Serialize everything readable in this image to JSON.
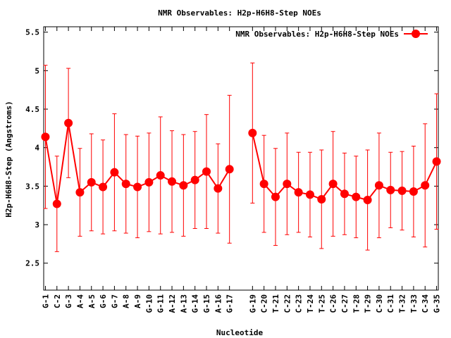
{
  "chart_data": {
    "type": "line",
    "title": "NMR Observables: H2p-H6H8-Step NOEs",
    "xlabel": "Nucleotide",
    "ylabel": "H2p-H6H8-Step (Angstroms)",
    "ylim": [
      2.15,
      5.57
    ],
    "yticks": [
      2.5,
      3,
      3.5,
      4,
      4.5,
      5,
      5.5
    ],
    "ytick_labels": [
      "2.5",
      "3",
      "3.5",
      "4",
      "4.5",
      "5",
      "5.5"
    ],
    "grid": false,
    "legend_position": "top-right",
    "series": [
      {
        "name": "NMR Observables: H2p-H6H8-Step NOEs",
        "color": "#ff0000",
        "points": [
          {
            "pos": 1,
            "label": "G-1",
            "y": 4.14,
            "err": 0.93
          },
          {
            "pos": 2,
            "label": "C-2",
            "y": 3.27,
            "err": 0.62
          },
          {
            "pos": 3,
            "label": "G-3",
            "y": 4.32,
            "err": 0.71
          },
          {
            "pos": 4,
            "label": "A-4",
            "y": 3.42,
            "err": 0.57
          },
          {
            "pos": 5,
            "label": "A-5",
            "y": 3.55,
            "err": 0.63
          },
          {
            "pos": 6,
            "label": "G-6",
            "y": 3.49,
            "err": 0.61
          },
          {
            "pos": 7,
            "label": "G-7",
            "y": 3.68,
            "err": 0.76
          },
          {
            "pos": 8,
            "label": "A-8",
            "y": 3.53,
            "err": 0.64
          },
          {
            "pos": 9,
            "label": "A-9",
            "y": 3.49,
            "err": 0.66
          },
          {
            "pos": 10,
            "label": "G-10",
            "y": 3.55,
            "err": 0.64
          },
          {
            "pos": 11,
            "label": "G-11",
            "y": 3.64,
            "err": 0.76
          },
          {
            "pos": 12,
            "label": "A-12",
            "y": 3.56,
            "err": 0.66
          },
          {
            "pos": 13,
            "label": "A-13",
            "y": 3.51,
            "err": 0.66
          },
          {
            "pos": 14,
            "label": "G-14",
            "y": 3.58,
            "err": 0.63
          },
          {
            "pos": 15,
            "label": "G-15",
            "y": 3.69,
            "err": 0.74
          },
          {
            "pos": 16,
            "label": "A-16",
            "y": 3.47,
            "err": 0.58
          },
          {
            "pos": 17,
            "label": "G-17",
            "y": 3.72,
            "err": 0.96
          },
          {
            "pos": 19,
            "label": "G-19",
            "y": 4.19,
            "err": 0.91
          },
          {
            "pos": 20,
            "label": "C-20",
            "y": 3.53,
            "err": 0.63
          },
          {
            "pos": 21,
            "label": "T-21",
            "y": 3.36,
            "err": 0.63
          },
          {
            "pos": 22,
            "label": "C-22",
            "y": 3.53,
            "err": 0.66
          },
          {
            "pos": 23,
            "label": "C-23",
            "y": 3.42,
            "err": 0.52
          },
          {
            "pos": 24,
            "label": "T-24",
            "y": 3.39,
            "err": 0.55
          },
          {
            "pos": 25,
            "label": "T-25",
            "y": 3.33,
            "err": 0.64
          },
          {
            "pos": 26,
            "label": "C-26",
            "y": 3.53,
            "err": 0.68
          },
          {
            "pos": 27,
            "label": "C-27",
            "y": 3.4,
            "err": 0.53
          },
          {
            "pos": 28,
            "label": "T-28",
            "y": 3.36,
            "err": 0.53
          },
          {
            "pos": 29,
            "label": "T-29",
            "y": 3.32,
            "err": 0.65
          },
          {
            "pos": 30,
            "label": "C-30",
            "y": 3.51,
            "err": 0.68
          },
          {
            "pos": 31,
            "label": "C-31",
            "y": 3.45,
            "err": 0.49
          },
          {
            "pos": 32,
            "label": "T-32",
            "y": 3.44,
            "err": 0.51
          },
          {
            "pos": 33,
            "label": "T-33",
            "y": 3.43,
            "err": 0.59
          },
          {
            "pos": 34,
            "label": "C-34",
            "y": 3.51,
            "err": 0.8
          },
          {
            "pos": 35,
            "label": "G-35",
            "y": 3.82,
            "err": 0.88
          }
        ]
      }
    ]
  }
}
